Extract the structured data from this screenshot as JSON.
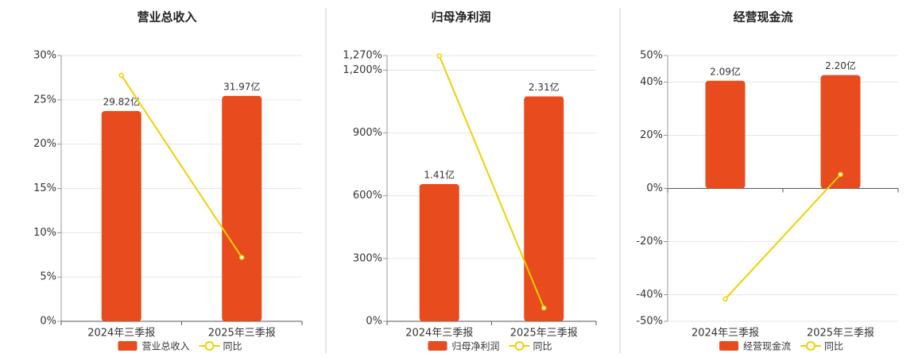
{
  "chart_data": [
    {
      "type": "bar",
      "title": "营业总收入",
      "categories": [
        "2024年三季报",
        "2025年三季报"
      ],
      "series": [
        {
          "name": "营业总收入",
          "type": "bar",
          "color": "#e84c1e",
          "values": [
            29.82,
            31.97
          ],
          "value_labels": [
            "29.82亿",
            "31.97亿"
          ],
          "axis": "y2"
        },
        {
          "name": "同比",
          "type": "line",
          "color": "#f2d000",
          "values": [
            27.76,
            7.21
          ]
        }
      ],
      "ylim": [
        0,
        30
      ],
      "yticks": [
        {
          "value": 0,
          "label": "0%"
        },
        {
          "value": 5,
          "label": "5%"
        },
        {
          "value": 10,
          "label": "10%"
        },
        {
          "value": 15,
          "label": "15%"
        },
        {
          "value": 20,
          "label": "20%"
        },
        {
          "value": 25,
          "label": "25%"
        },
        {
          "value": 30,
          "label": "30%"
        }
      ],
      "y2lim": [
        0,
        37.7
      ],
      "grid": true
    },
    {
      "type": "bar",
      "title": "归母净利润",
      "categories": [
        "2024年三季报",
        "2025年三季报"
      ],
      "series": [
        {
          "name": "归母净利润",
          "type": "bar",
          "color": "#e84c1e",
          "values": [
            1.41,
            2.31
          ],
          "value_labels": [
            "1.41亿",
            "2.31亿"
          ],
          "axis": "y2"
        },
        {
          "name": "同比",
          "type": "line",
          "color": "#f2d000",
          "values": [
            1268,
            63.83
          ]
        }
      ],
      "ylim": [
        0,
        1270
      ],
      "yticks": [
        {
          "value": 0,
          "label": "0%"
        },
        {
          "value": 300,
          "label": "300%"
        },
        {
          "value": 600,
          "label": "600%"
        },
        {
          "value": 900,
          "label": "900%"
        },
        {
          "value": 1200,
          "label": "1,200%"
        },
        {
          "value": 1270,
          "label": "1,270%"
        }
      ],
      "y2lim": [
        0,
        2.73
      ],
      "grid": true
    },
    {
      "type": "bar",
      "title": "经营现金流",
      "categories": [
        "2024年三季报",
        "2025年三季报"
      ],
      "series": [
        {
          "name": "经营现金流",
          "type": "bar",
          "color": "#e84c1e",
          "values": [
            2.09,
            2.2
          ],
          "value_labels": [
            "2.09亿",
            "2.20亿"
          ],
          "axis": "y2"
        },
        {
          "name": "同比",
          "type": "line",
          "color": "#f2d000",
          "values": [
            -41.6,
            5.26
          ]
        }
      ],
      "ylim": [
        -50,
        50
      ],
      "yticks": [
        {
          "value": -50,
          "label": "-50%"
        },
        {
          "value": -40,
          "label": "-40%"
        },
        {
          "value": -20,
          "label": "-20%"
        },
        {
          "value": 0,
          "label": "0%"
        },
        {
          "value": 20,
          "label": "20%"
        },
        {
          "value": 40,
          "label": "40%"
        },
        {
          "value": 50,
          "label": "50%"
        }
      ],
      "y2lim": [
        -2.58,
        2.58
      ],
      "grid": true
    }
  ]
}
